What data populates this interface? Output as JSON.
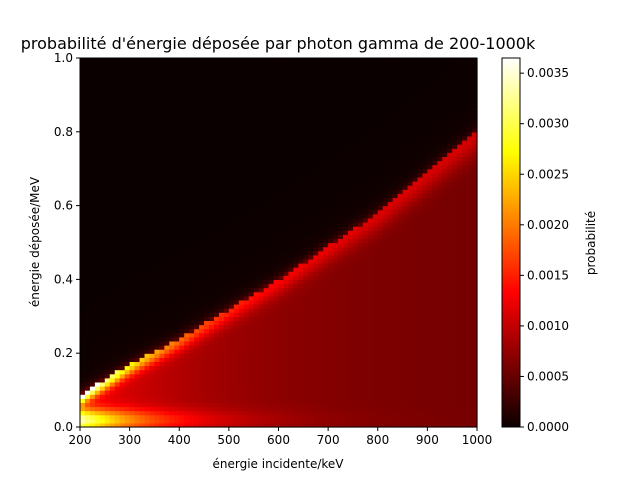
{
  "chart_data": {
    "type": "heatmap",
    "title": "probabilité d'énergie déposée par photon gamma de 200-1000k",
    "xlabel": "énergie incidente/keV",
    "ylabel": "énergie déposée/MeV",
    "xlim": [
      200,
      1000
    ],
    "ylim": [
      0,
      1.0
    ],
    "xticks": [
      "200",
      "300",
      "400",
      "500",
      "600",
      "700",
      "800",
      "900",
      "1000"
    ],
    "yticks": [
      "0.0",
      "0.2",
      "0.4",
      "0.6",
      "0.8",
      "1.0"
    ],
    "colormap": "hot",
    "colorbar": {
      "label": "probabilité",
      "range": [
        0,
        0.00365
      ],
      "ticks": [
        "0.0000",
        "0.0005",
        "0.0010",
        "0.0015",
        "0.0020",
        "0.0025",
        "0.0030",
        "0.0035"
      ]
    },
    "edge": {
      "x": [
        200,
        300,
        400,
        500,
        600,
        700,
        800,
        900,
        1000
      ],
      "y": [
        0.09,
        0.17,
        0.24,
        0.32,
        0.4,
        0.49,
        0.58,
        0.69,
        0.8
      ]
    },
    "peak_probability": 0.0036,
    "grid": false
  }
}
